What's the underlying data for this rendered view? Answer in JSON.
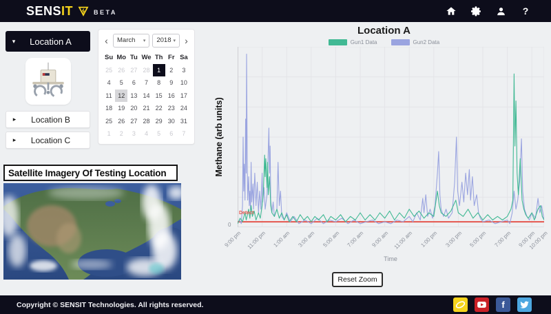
{
  "header": {
    "brand_primary": "SENS",
    "brand_accent": "IT",
    "beta": "BETA",
    "help_glyph": "?",
    "icons": [
      "home-icon",
      "settings-icon",
      "user-icon",
      "help-icon"
    ]
  },
  "sidebar": {
    "caret_down": "▾",
    "caret_right": "▸",
    "items": [
      {
        "label": "Location A",
        "expanded": true
      },
      {
        "label": "Location B",
        "expanded": false
      },
      {
        "label": "Location C",
        "expanded": false
      }
    ],
    "device_image": "methane-sensor-device"
  },
  "calendar": {
    "prev_icon": "‹",
    "next_icon": "›",
    "dropdown_icon": "▾",
    "month": "March",
    "year": "2018",
    "day_headers": [
      "Su",
      "Mo",
      "Tu",
      "We",
      "Th",
      "Fr",
      "Sa"
    ],
    "weeks": [
      [
        {
          "d": "25",
          "s": "muted"
        },
        {
          "d": "26",
          "s": "muted"
        },
        {
          "d": "27",
          "s": "muted"
        },
        {
          "d": "28",
          "s": "muted"
        },
        {
          "d": "1",
          "s": "selected-dark"
        },
        {
          "d": "2",
          "s": ""
        },
        {
          "d": "3",
          "s": ""
        }
      ],
      [
        {
          "d": "4",
          "s": ""
        },
        {
          "d": "5",
          "s": ""
        },
        {
          "d": "6",
          "s": ""
        },
        {
          "d": "7",
          "s": ""
        },
        {
          "d": "8",
          "s": ""
        },
        {
          "d": "9",
          "s": ""
        },
        {
          "d": "10",
          "s": ""
        }
      ],
      [
        {
          "d": "11",
          "s": ""
        },
        {
          "d": "12",
          "s": "selected-gray"
        },
        {
          "d": "13",
          "s": ""
        },
        {
          "d": "14",
          "s": ""
        },
        {
          "d": "15",
          "s": ""
        },
        {
          "d": "16",
          "s": ""
        },
        {
          "d": "17",
          "s": ""
        }
      ],
      [
        {
          "d": "18",
          "s": ""
        },
        {
          "d": "19",
          "s": ""
        },
        {
          "d": "20",
          "s": ""
        },
        {
          "d": "21",
          "s": ""
        },
        {
          "d": "22",
          "s": ""
        },
        {
          "d": "23",
          "s": ""
        },
        {
          "d": "24",
          "s": ""
        }
      ],
      [
        {
          "d": "25",
          "s": ""
        },
        {
          "d": "26",
          "s": ""
        },
        {
          "d": "27",
          "s": ""
        },
        {
          "d": "28",
          "s": ""
        },
        {
          "d": "29",
          "s": ""
        },
        {
          "d": "30",
          "s": ""
        },
        {
          "d": "31",
          "s": ""
        }
      ],
      [
        {
          "d": "1",
          "s": "muted"
        },
        {
          "d": "2",
          "s": "muted"
        },
        {
          "d": "3",
          "s": "muted"
        },
        {
          "d": "4",
          "s": "muted"
        },
        {
          "d": "5",
          "s": "muted"
        },
        {
          "d": "6",
          "s": "muted"
        },
        {
          "d": "7",
          "s": "muted"
        }
      ]
    ]
  },
  "satellite": {
    "title": "Satellite Imagery Of Testing Location"
  },
  "chart_data": {
    "type": "line",
    "title": "Location A",
    "xlabel": "Time",
    "ylabel": "Methane (arb units)",
    "x_range": [
      0,
      25
    ],
    "ylim": [
      0,
      100
    ],
    "grid": true,
    "legend_position": "top",
    "y_ticks_visible": [
      "0"
    ],
    "x_ticks": [
      {
        "h": 0,
        "label": "9:00 pm"
      },
      {
        "h": 2,
        "label": "11:00 pm"
      },
      {
        "h": 4,
        "label": "1:00 am"
      },
      {
        "h": 6,
        "label": "3:00 am"
      },
      {
        "h": 8,
        "label": "5:00 am"
      },
      {
        "h": 10,
        "label": "7:00 am"
      },
      {
        "h": 12,
        "label": "9:00 am"
      },
      {
        "h": 14,
        "label": "11:00 am"
      },
      {
        "h": 16,
        "label": "1:00 pm"
      },
      {
        "h": 18,
        "label": "3:00 pm"
      },
      {
        "h": 20,
        "label": "5:00 pm"
      },
      {
        "h": 22,
        "label": "7:00 pm"
      },
      {
        "h": 24,
        "label": "9:00 pm"
      },
      {
        "h": 25,
        "label": "10:00 pm"
      }
    ],
    "threshold": {
      "value": 3,
      "color": "#e4564d",
      "label": "Detect"
    },
    "series": [
      {
        "name": "Gun1 Data",
        "color": "#41b994",
        "points": [
          [
            0,
            2
          ],
          [
            0.2,
            5
          ],
          [
            0.4,
            3
          ],
          [
            0.6,
            8
          ],
          [
            0.7,
            4
          ],
          [
            0.9,
            10
          ],
          [
            1,
            5
          ],
          [
            1.1,
            12
          ],
          [
            1.2,
            6
          ],
          [
            1.35,
            9
          ],
          [
            1.5,
            4
          ],
          [
            1.7,
            8
          ],
          [
            1.85,
            5
          ],
          [
            2,
            12
          ],
          [
            2.1,
            20
          ],
          [
            2.2,
            40
          ],
          [
            2.25,
            28
          ],
          [
            2.3,
            38
          ],
          [
            2.4,
            22
          ],
          [
            2.45,
            36
          ],
          [
            2.5,
            18
          ],
          [
            2.6,
            28
          ],
          [
            2.7,
            12
          ],
          [
            2.8,
            8
          ],
          [
            3,
            6
          ],
          [
            3.2,
            10
          ],
          [
            3.4,
            5
          ],
          [
            3.6,
            8
          ],
          [
            3.8,
            4
          ],
          [
            4,
            7
          ],
          [
            4.2,
            3
          ],
          [
            4.5,
            6
          ],
          [
            4.8,
            3
          ],
          [
            5.1,
            7
          ],
          [
            5.4,
            4
          ],
          [
            5.7,
            6
          ],
          [
            6,
            3
          ],
          [
            6.3,
            6
          ],
          [
            6.6,
            4
          ],
          [
            7,
            7
          ],
          [
            7.3,
            3
          ],
          [
            7.6,
            6
          ],
          [
            8,
            4
          ],
          [
            8.4,
            7
          ],
          [
            8.8,
            3
          ],
          [
            9.2,
            6
          ],
          [
            9.6,
            4
          ],
          [
            10,
            8
          ],
          [
            10.4,
            4
          ],
          [
            10.8,
            7
          ],
          [
            11.2,
            4
          ],
          [
            11.6,
            8
          ],
          [
            12,
            5
          ],
          [
            12.4,
            9
          ],
          [
            12.8,
            4
          ],
          [
            13.2,
            8
          ],
          [
            13.6,
            5
          ],
          [
            14,
            10
          ],
          [
            14.4,
            6
          ],
          [
            14.8,
            9
          ],
          [
            15.2,
            5
          ],
          [
            15.6,
            8
          ],
          [
            16,
            6
          ],
          [
            16.3,
            20
          ],
          [
            16.45,
            12
          ],
          [
            16.6,
            8
          ],
          [
            17,
            6
          ],
          [
            17.4,
            9
          ],
          [
            17.8,
            15
          ],
          [
            18,
            8
          ],
          [
            18.4,
            6
          ],
          [
            18.8,
            10
          ],
          [
            19.2,
            5
          ],
          [
            19.6,
            8
          ],
          [
            20,
            4
          ],
          [
            20.4,
            7
          ],
          [
            20.8,
            4
          ],
          [
            21.2,
            6
          ],
          [
            21.6,
            4
          ],
          [
            22,
            6
          ],
          [
            22.3,
            10
          ],
          [
            22.45,
            15
          ],
          [
            22.55,
            85
          ],
          [
            22.62,
            45
          ],
          [
            22.7,
            70
          ],
          [
            22.8,
            30
          ],
          [
            22.9,
            18
          ],
          [
            23.05,
            38
          ],
          [
            23.2,
            15
          ],
          [
            23.35,
            10
          ],
          [
            23.5,
            7
          ],
          [
            23.7,
            5
          ],
          [
            24,
            8
          ],
          [
            24.2,
            4
          ],
          [
            24.5,
            10
          ],
          [
            24.7,
            12
          ],
          [
            24.85,
            6
          ],
          [
            25,
            4
          ]
        ]
      },
      {
        "name": "Gun2 Data",
        "color": "#9aa4e0",
        "points": [
          [
            0,
            2
          ],
          [
            0.15,
            4
          ],
          [
            0.3,
            2
          ],
          [
            0.4,
            12
          ],
          [
            0.45,
            50
          ],
          [
            0.5,
            20
          ],
          [
            0.55,
            35
          ],
          [
            0.6,
            15
          ],
          [
            0.65,
            60
          ],
          [
            0.7,
            30
          ],
          [
            0.73,
            96
          ],
          [
            0.78,
            40
          ],
          [
            0.82,
            15
          ],
          [
            0.9,
            28
          ],
          [
            0.95,
            12
          ],
          [
            1,
            20
          ],
          [
            1.05,
            8
          ],
          [
            1.1,
            36
          ],
          [
            1.15,
            14
          ],
          [
            1.25,
            24
          ],
          [
            1.3,
            10
          ],
          [
            1.4,
            30
          ],
          [
            1.5,
            12
          ],
          [
            1.6,
            25
          ],
          [
            1.7,
            8
          ],
          [
            1.8,
            20
          ],
          [
            1.9,
            10
          ],
          [
            2,
            30
          ],
          [
            2.05,
            14
          ],
          [
            2.15,
            22
          ],
          [
            2.25,
            10
          ],
          [
            2.4,
            18
          ],
          [
            2.55,
            55
          ],
          [
            2.6,
            30
          ],
          [
            2.65,
            45
          ],
          [
            2.7,
            15
          ],
          [
            2.8,
            8
          ],
          [
            2.9,
            14
          ],
          [
            3,
            6
          ],
          [
            3.2,
            10
          ],
          [
            3.3,
            36
          ],
          [
            3.4,
            12
          ],
          [
            3.5,
            20
          ],
          [
            3.6,
            6
          ],
          [
            3.8,
            4
          ],
          [
            4,
            8
          ],
          [
            4.3,
            3
          ],
          [
            4.6,
            6
          ],
          [
            5,
            2
          ],
          [
            5.5,
            4
          ],
          [
            6,
            2
          ],
          [
            6.5,
            5
          ],
          [
            7,
            2
          ],
          [
            7.5,
            4
          ],
          [
            8,
            3
          ],
          [
            8.5,
            5
          ],
          [
            9,
            2
          ],
          [
            9.5,
            4
          ],
          [
            10,
            2
          ],
          [
            10.5,
            3
          ],
          [
            11,
            4
          ],
          [
            11.5,
            2
          ],
          [
            12,
            3
          ],
          [
            12.5,
            2
          ],
          [
            13,
            4
          ],
          [
            13.5,
            3
          ],
          [
            14,
            6
          ],
          [
            14.3,
            3
          ],
          [
            14.6,
            8
          ],
          [
            14.9,
            4
          ],
          [
            15.1,
            16
          ],
          [
            15.2,
            8
          ],
          [
            15.35,
            18
          ],
          [
            15.5,
            6
          ],
          [
            15.7,
            10
          ],
          [
            15.9,
            5
          ],
          [
            16.1,
            12
          ],
          [
            16.3,
            30
          ],
          [
            16.4,
            42
          ],
          [
            16.5,
            18
          ],
          [
            16.6,
            10
          ],
          [
            16.8,
            6
          ],
          [
            17,
            10
          ],
          [
            17.2,
            5
          ],
          [
            17.5,
            8
          ],
          [
            17.7,
            25
          ],
          [
            17.85,
            50
          ],
          [
            17.95,
            20
          ],
          [
            18.1,
            12
          ],
          [
            18.3,
            25
          ],
          [
            18.45,
            14
          ],
          [
            18.6,
            30
          ],
          [
            18.75,
            18
          ],
          [
            18.9,
            32
          ],
          [
            19,
            15
          ],
          [
            19.15,
            28
          ],
          [
            19.3,
            12
          ],
          [
            19.5,
            18
          ],
          [
            19.65,
            8
          ],
          [
            19.8,
            5
          ],
          [
            20,
            3
          ],
          [
            20.5,
            4
          ],
          [
            21,
            2
          ],
          [
            21.5,
            3
          ],
          [
            22,
            4
          ],
          [
            22.2,
            2
          ],
          [
            22.4,
            8
          ],
          [
            22.55,
            20
          ],
          [
            22.7,
            10
          ],
          [
            22.85,
            15
          ],
          [
            23,
            25
          ],
          [
            23.15,
            49
          ],
          [
            23.25,
            20
          ],
          [
            23.4,
            10
          ],
          [
            23.6,
            6
          ],
          [
            23.8,
            4
          ],
          [
            24,
            8
          ],
          [
            24.3,
            5
          ],
          [
            24.5,
            16
          ],
          [
            24.65,
            8
          ],
          [
            24.8,
            12
          ],
          [
            25,
            4
          ]
        ]
      }
    ]
  },
  "reset_button": {
    "label": "Reset Zoom"
  },
  "footer": {
    "copyright": "Copyright © SENSIT Technologies. All rights reserved.",
    "facebook_glyph": "f",
    "social": [
      "sensit-logo-icon",
      "youtube-icon",
      "facebook-icon",
      "twitter-icon"
    ]
  }
}
